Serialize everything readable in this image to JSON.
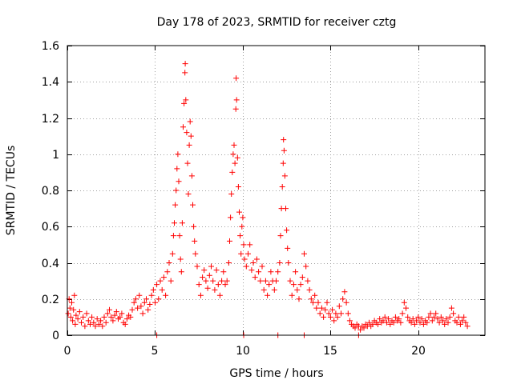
{
  "chart_data": {
    "type": "scatter",
    "title": "Day 178 of 2023, SRMTID for receiver cztg",
    "xlabel": "GPS time / hours",
    "ylabel": "SRMTID / TECUs",
    "xlim": [
      0,
      23.8
    ],
    "ylim": [
      0,
      1.6
    ],
    "xticks": [
      0,
      5,
      10,
      15,
      20
    ],
    "xtick_labels": [
      "0",
      "5",
      "10",
      "15",
      "20"
    ],
    "yticks": [
      0,
      0.2,
      0.4,
      0.6,
      0.8,
      1.0,
      1.2,
      1.4,
      1.6
    ],
    "ytick_labels": [
      "0",
      "0.2",
      "0.4",
      "0.6",
      "0.8",
      "1",
      "1.2",
      "1.4",
      "1.6"
    ],
    "grid": true,
    "marker": "+",
    "marker_color": "#ff0000",
    "series": [
      {
        "name": "SRMTID",
        "points": [
          [
            0.05,
            0.12
          ],
          [
            0.1,
            0.2
          ],
          [
            0.15,
            0.15
          ],
          [
            0.2,
            0.1
          ],
          [
            0.25,
            0.18
          ],
          [
            0.3,
            0.08
          ],
          [
            0.35,
            0.14
          ],
          [
            0.4,
            0.22
          ],
          [
            0.45,
            0.06
          ],
          [
            0.5,
            0.11
          ],
          [
            0.6,
            0.09
          ],
          [
            0.7,
            0.13
          ],
          [
            0.8,
            0.07
          ],
          [
            0.9,
            0.1
          ],
          [
            1.0,
            0.05
          ],
          [
            1.1,
            0.12
          ],
          [
            1.2,
            0.08
          ],
          [
            1.3,
            0.06
          ],
          [
            1.4,
            0.1
          ],
          [
            1.5,
            0.07
          ],
          [
            1.6,
            0.05
          ],
          [
            1.7,
            0.09
          ],
          [
            1.8,
            0.06
          ],
          [
            1.9,
            0.08
          ],
          [
            2.0,
            0.05
          ],
          [
            2.1,
            0.1
          ],
          [
            2.2,
            0.07
          ],
          [
            2.3,
            0.12
          ],
          [
            2.4,
            0.14
          ],
          [
            2.5,
            0.1
          ],
          [
            2.6,
            0.08
          ],
          [
            2.7,
            0.11
          ],
          [
            2.8,
            0.13
          ],
          [
            2.9,
            0.09
          ],
          [
            3.0,
            0.1
          ],
          [
            3.1,
            0.12
          ],
          [
            3.2,
            0.07
          ],
          [
            3.3,
            0.06
          ],
          [
            3.4,
            0.09
          ],
          [
            3.5,
            0.11
          ],
          [
            3.6,
            0.1
          ],
          [
            3.7,
            0.14
          ],
          [
            3.8,
            0.18
          ],
          [
            3.9,
            0.2
          ],
          [
            4.0,
            0.15
          ],
          [
            4.1,
            0.22
          ],
          [
            4.2,
            0.16
          ],
          [
            4.3,
            0.12
          ],
          [
            4.4,
            0.18
          ],
          [
            4.5,
            0.2
          ],
          [
            4.6,
            0.14
          ],
          [
            4.7,
            0.17
          ],
          [
            4.8,
            0.22
          ],
          [
            4.9,
            0.25
          ],
          [
            5.0,
            0.18
          ],
          [
            5.1,
            0.28
          ],
          [
            5.2,
            0.2
          ],
          [
            5.3,
            0.3
          ],
          [
            5.4,
            0.25
          ],
          [
            5.5,
            0.32
          ],
          [
            5.6,
            0.22
          ],
          [
            5.7,
            0.35
          ],
          [
            5.8,
            0.4
          ],
          [
            5.9,
            0.3
          ],
          [
            6.0,
            0.45
          ],
          [
            6.05,
            0.55
          ],
          [
            6.1,
            0.62
          ],
          [
            6.15,
            0.72
          ],
          [
            6.2,
            0.8
          ],
          [
            6.25,
            0.92
          ],
          [
            6.3,
            1.0
          ],
          [
            6.35,
            0.85
          ],
          [
            6.4,
            0.55
          ],
          [
            6.45,
            0.42
          ],
          [
            6.5,
            0.35
          ],
          [
            6.55,
            0.62
          ],
          [
            6.6,
            1.15
          ],
          [
            6.65,
            1.28
          ],
          [
            6.7,
            1.45
          ],
          [
            6.72,
            1.5
          ],
          [
            6.75,
            1.3
          ],
          [
            6.8,
            1.12
          ],
          [
            6.85,
            0.95
          ],
          [
            6.9,
            0.78
          ],
          [
            6.95,
            1.05
          ],
          [
            7.0,
            1.18
          ],
          [
            7.05,
            1.1
          ],
          [
            7.1,
            0.88
          ],
          [
            7.15,
            0.72
          ],
          [
            7.2,
            0.6
          ],
          [
            7.25,
            0.52
          ],
          [
            7.3,
            0.45
          ],
          [
            7.4,
            0.38
          ],
          [
            7.5,
            0.28
          ],
          [
            7.6,
            0.22
          ],
          [
            7.7,
            0.32
          ],
          [
            7.8,
            0.36
          ],
          [
            7.9,
            0.3
          ],
          [
            8.0,
            0.26
          ],
          [
            8.1,
            0.33
          ],
          [
            8.2,
            0.38
          ],
          [
            8.3,
            0.3
          ],
          [
            8.4,
            0.25
          ],
          [
            8.5,
            0.36
          ],
          [
            8.6,
            0.28
          ],
          [
            8.7,
            0.22
          ],
          [
            8.8,
            0.3
          ],
          [
            8.9,
            0.35
          ],
          [
            9.0,
            0.28
          ],
          [
            9.1,
            0.3
          ],
          [
            9.2,
            0.4
          ],
          [
            9.25,
            0.52
          ],
          [
            9.3,
            0.65
          ],
          [
            9.35,
            0.78
          ],
          [
            9.4,
            0.9
          ],
          [
            9.45,
            1.0
          ],
          [
            9.5,
            1.05
          ],
          [
            9.55,
            0.95
          ],
          [
            9.6,
            1.25
          ],
          [
            9.62,
            1.42
          ],
          [
            9.65,
            1.3
          ],
          [
            9.7,
            0.98
          ],
          [
            9.75,
            0.82
          ],
          [
            9.8,
            0.68
          ],
          [
            9.85,
            0.55
          ],
          [
            9.9,
            0.45
          ],
          [
            9.95,
            0.6
          ],
          [
            10.0,
            0.65
          ],
          [
            10.05,
            0.5
          ],
          [
            10.1,
            0.42
          ],
          [
            10.2,
            0.38
          ],
          [
            10.3,
            0.45
          ],
          [
            10.4,
            0.5
          ],
          [
            10.5,
            0.36
          ],
          [
            10.6,
            0.4
          ],
          [
            10.7,
            0.32
          ],
          [
            10.8,
            0.42
          ],
          [
            10.9,
            0.35
          ],
          [
            11.0,
            0.3
          ],
          [
            11.1,
            0.38
          ],
          [
            11.2,
            0.25
          ],
          [
            11.3,
            0.3
          ],
          [
            11.4,
            0.22
          ],
          [
            11.5,
            0.28
          ],
          [
            11.6,
            0.35
          ],
          [
            11.7,
            0.3
          ],
          [
            11.8,
            0.25
          ],
          [
            11.9,
            0.3
          ],
          [
            12.0,
            0.35
          ],
          [
            12.1,
            0.4
          ],
          [
            12.15,
            0.55
          ],
          [
            12.2,
            0.7
          ],
          [
            12.25,
            0.82
          ],
          [
            12.3,
            0.95
          ],
          [
            12.32,
            1.08
          ],
          [
            12.35,
            1.02
          ],
          [
            12.4,
            0.88
          ],
          [
            12.45,
            0.7
          ],
          [
            12.5,
            0.58
          ],
          [
            12.55,
            0.48
          ],
          [
            12.6,
            0.4
          ],
          [
            12.7,
            0.3
          ],
          [
            12.8,
            0.22
          ],
          [
            12.9,
            0.28
          ],
          [
            13.0,
            0.35
          ],
          [
            13.1,
            0.25
          ],
          [
            13.2,
            0.2
          ],
          [
            13.3,
            0.28
          ],
          [
            13.4,
            0.32
          ],
          [
            13.5,
            0.45
          ],
          [
            13.6,
            0.38
          ],
          [
            13.7,
            0.3
          ],
          [
            13.8,
            0.25
          ],
          [
            13.9,
            0.2
          ],
          [
            14.0,
            0.18
          ],
          [
            14.1,
            0.22
          ],
          [
            14.2,
            0.15
          ],
          [
            14.3,
            0.18
          ],
          [
            14.4,
            0.12
          ],
          [
            14.5,
            0.15
          ],
          [
            14.6,
            0.1
          ],
          [
            14.7,
            0.14
          ],
          [
            14.8,
            0.18
          ],
          [
            14.9,
            0.12
          ],
          [
            15.0,
            0.1
          ],
          [
            15.1,
            0.14
          ],
          [
            15.2,
            0.08
          ],
          [
            15.3,
            0.12
          ],
          [
            15.4,
            0.1
          ],
          [
            15.5,
            0.16
          ],
          [
            15.6,
            0.12
          ],
          [
            15.7,
            0.2
          ],
          [
            15.8,
            0.24
          ],
          [
            15.9,
            0.18
          ],
          [
            16.0,
            0.12
          ],
          [
            16.1,
            0.08
          ],
          [
            16.2,
            0.06
          ],
          [
            16.3,
            0.05
          ],
          [
            16.4,
            0.04
          ],
          [
            16.5,
            0.06
          ],
          [
            16.6,
            0.05
          ],
          [
            16.7,
            0.03
          ],
          [
            16.8,
            0.05
          ],
          [
            16.9,
            0.04
          ],
          [
            17.0,
            0.06
          ],
          [
            17.1,
            0.05
          ],
          [
            17.2,
            0.07
          ],
          [
            17.3,
            0.05
          ],
          [
            17.4,
            0.06
          ],
          [
            17.5,
            0.08
          ],
          [
            17.6,
            0.07
          ],
          [
            17.7,
            0.06
          ],
          [
            17.8,
            0.09
          ],
          [
            17.9,
            0.07
          ],
          [
            18.0,
            0.08
          ],
          [
            18.1,
            0.1
          ],
          [
            18.2,
            0.07
          ],
          [
            18.3,
            0.09
          ],
          [
            18.4,
            0.06
          ],
          [
            18.5,
            0.08
          ],
          [
            18.6,
            0.07
          ],
          [
            18.7,
            0.1
          ],
          [
            18.8,
            0.08
          ],
          [
            18.9,
            0.09
          ],
          [
            19.0,
            0.07
          ],
          [
            19.1,
            0.12
          ],
          [
            19.2,
            0.18
          ],
          [
            19.3,
            0.15
          ],
          [
            19.4,
            0.1
          ],
          [
            19.5,
            0.08
          ],
          [
            19.6,
            0.07
          ],
          [
            19.7,
            0.09
          ],
          [
            19.8,
            0.06
          ],
          [
            19.9,
            0.08
          ],
          [
            20.0,
            0.1
          ],
          [
            20.1,
            0.07
          ],
          [
            20.2,
            0.09
          ],
          [
            20.3,
            0.06
          ],
          [
            20.4,
            0.08
          ],
          [
            20.5,
            0.07
          ],
          [
            20.6,
            0.1
          ],
          [
            20.7,
            0.12
          ],
          [
            20.8,
            0.08
          ],
          [
            20.9,
            0.1
          ],
          [
            21.0,
            0.12
          ],
          [
            21.1,
            0.09
          ],
          [
            21.2,
            0.07
          ],
          [
            21.3,
            0.1
          ],
          [
            21.4,
            0.08
          ],
          [
            21.5,
            0.06
          ],
          [
            21.6,
            0.09
          ],
          [
            21.7,
            0.07
          ],
          [
            21.8,
            0.1
          ],
          [
            21.9,
            0.15
          ],
          [
            22.0,
            0.12
          ],
          [
            22.1,
            0.08
          ],
          [
            22.2,
            0.07
          ],
          [
            22.3,
            0.1
          ],
          [
            22.4,
            0.06
          ],
          [
            22.5,
            0.08
          ],
          [
            22.6,
            0.1
          ],
          [
            22.7,
            0.07
          ],
          [
            22.8,
            0.05
          ],
          [
            12.0,
            0.0
          ],
          [
            16.6,
            0.0
          ],
          [
            5.1,
            0.0
          ],
          [
            10.05,
            0.0
          ],
          [
            13.5,
            0.0
          ]
        ]
      }
    ]
  }
}
